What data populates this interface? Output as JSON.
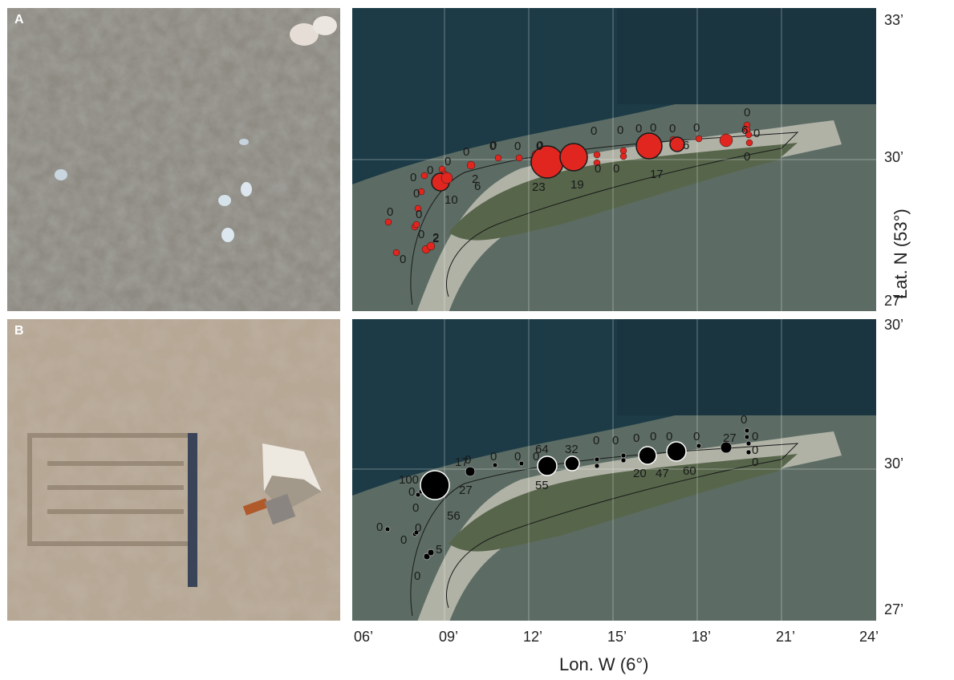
{
  "panels": {
    "a": {
      "letter": "A"
    },
    "b": {
      "letter": "B"
    }
  },
  "colors": {
    "panel_a_marker": "#e0261f",
    "panel_b_marker": "#000000",
    "sea": "#1b3a45",
    "tidal_flat": "#5d6e66",
    "beach": "#d8d4c6"
  },
  "axes": {
    "x_title": "Lon. W (6°)",
    "y_title": "Lat. N (53°)",
    "x_ticks": [
      "06’",
      "09’",
      "12’",
      "15’",
      "18’",
      "21’",
      "24’"
    ],
    "y_ticks_top": [
      "33’",
      "30’",
      "27’"
    ],
    "y_ticks_bottom": [
      "30’",
      "30’",
      "27’"
    ]
  },
  "map_a_labels": [
    "0",
    "0",
    "0",
    "0",
    "0",
    "0",
    "0",
    "0",
    "0",
    "0",
    "0",
    "0",
    "0",
    "0",
    "0",
    "0",
    "0",
    "0",
    "0",
    "0",
    "0",
    "0",
    "0",
    "0",
    "0",
    "2",
    "2",
    "6",
    "10",
    "23",
    "19",
    "17",
    "6",
    "6",
    "2"
  ],
  "map_b_labels": [
    "0",
    "0",
    "0",
    "0",
    "0",
    "0",
    "0",
    "0",
    "0",
    "0",
    "0",
    "0",
    "0",
    "0",
    "0",
    "0",
    "0",
    "0",
    "0",
    "0",
    "100",
    "17",
    "64",
    "32",
    "27",
    "56",
    "55",
    "20",
    "47",
    "60",
    "27",
    "5"
  ]
}
